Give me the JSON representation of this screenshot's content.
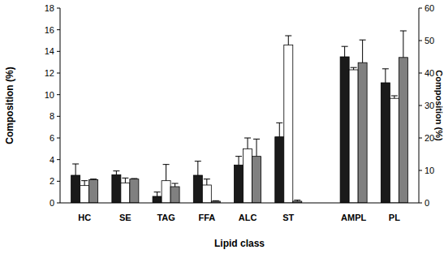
{
  "chart_data": {
    "type": "bar",
    "x_label": "Lipid class",
    "y_label": "Composition (%)",
    "y2_label": "Composition (%)",
    "categories": [
      "HC",
      "SE",
      "TAG",
      "FFA",
      "ALC",
      "ST",
      "AMPL",
      "PL"
    ],
    "ylim": [
      0,
      18
    ],
    "yticks": [
      0,
      2,
      4,
      6,
      8,
      10,
      12,
      14,
      16,
      18
    ],
    "y2lim": [
      0,
      60
    ],
    "y2ticks": [
      0,
      10,
      20,
      30,
      40,
      50,
      60
    ],
    "grid": false,
    "series": [
      {
        "color": "#1a1a1a",
        "values": [
          2.55,
          2.6,
          0.6,
          2.55,
          3.5,
          6.1,
          null,
          null
        ],
        "errors": [
          1.05,
          0.35,
          0.4,
          1.3,
          0.8,
          1.3,
          null,
          null
        ]
      },
      {
        "color": "#ffffff",
        "values": [
          1.6,
          1.85,
          2.05,
          1.65,
          5.0,
          14.6,
          null,
          null
        ],
        "errors": [
          0.45,
          0.45,
          1.5,
          0.55,
          1.0,
          0.85,
          null,
          null
        ]
      },
      {
        "color": "#808080",
        "values": [
          2.15,
          2.2,
          1.5,
          0.15,
          4.3,
          0.15,
          null,
          null
        ],
        "errors": [
          0.05,
          0.05,
          0.3,
          0.05,
          1.6,
          0.1,
          null,
          null
        ]
      },
      {
        "color": "#1a1a1a",
        "axis": "y2",
        "values": [
          null,
          null,
          null,
          null,
          null,
          null,
          45,
          37
        ],
        "errors": [
          null,
          null,
          null,
          null,
          null,
          null,
          3.2,
          4.3
        ]
      },
      {
        "color": "#ffffff",
        "axis": "y2",
        "values": [
          null,
          null,
          null,
          null,
          null,
          null,
          41,
          32.2
        ],
        "errors": [
          null,
          null,
          null,
          null,
          null,
          null,
          0.7,
          0.8
        ]
      },
      {
        "color": "#808080",
        "axis": "y2",
        "values": [
          null,
          null,
          null,
          null,
          null,
          null,
          43.2,
          44.8
        ],
        "errors": [
          null,
          null,
          null,
          null,
          null,
          null,
          7,
          8.2
        ]
      }
    ]
  }
}
